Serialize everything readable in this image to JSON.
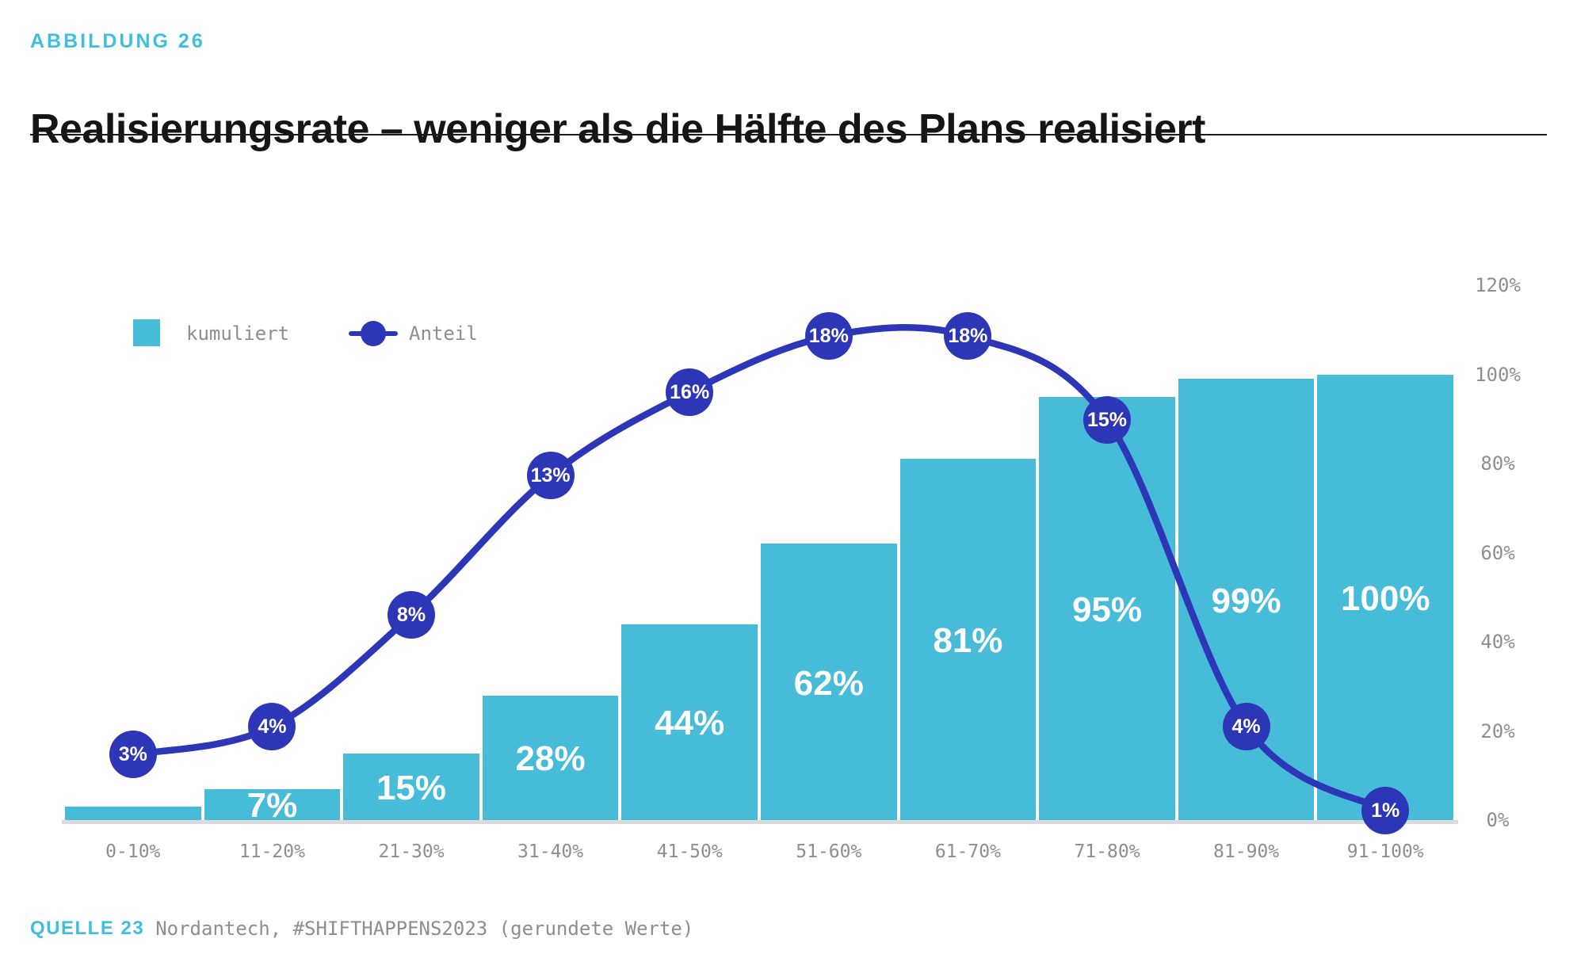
{
  "header": {
    "eyebrow": "ABBILDUNG 26",
    "title": "Realisierungsrate – weniger als die Hälfte des Plans realisiert"
  },
  "legend": {
    "bar_label": "kumuliert",
    "line_label": "Anteil"
  },
  "source": {
    "tag": "QUELLE 23",
    "text": "Nordantech, #SHIFTHAPPENS2023 (gerundete Werte)"
  },
  "colors": {
    "bar_cyan": "#47BCD9",
    "line_indigo": "#2D36B6",
    "accent_text_cyan": "#3FBFE0",
    "muted_gray": "#8E8E8E",
    "baseline_gray": "#D9DADB",
    "title_black": "#151515"
  },
  "chart_data": {
    "type": "bar",
    "subtype": "bar+line-combo",
    "categories": [
      "0-10%",
      "11-20%",
      "21-30%",
      "31-40%",
      "41-50%",
      "51-60%",
      "61-70%",
      "71-80%",
      "81-90%",
      "91-100%"
    ],
    "series": [
      {
        "name": "kumuliert",
        "type": "bar",
        "color": "#47BCD9",
        "values": [
          3,
          7,
          15,
          28,
          44,
          62,
          81,
          95,
          99,
          100
        ],
        "labels": [
          "",
          "7%",
          "15%",
          "28%",
          "44%",
          "62%",
          "81%",
          "95%",
          "99%",
          "100%"
        ]
      },
      {
        "name": "Anteil",
        "type": "line",
        "color": "#2D36B6",
        "values": [
          3,
          4,
          8,
          13,
          16,
          18,
          18,
          15,
          4,
          1
        ],
        "labels": [
          "3%",
          "4%",
          "8%",
          "13%",
          "16%",
          "18%",
          "18%",
          "15%",
          "4%",
          "1%"
        ]
      }
    ],
    "right_axis": {
      "tick_labels": [
        "0%",
        "20%",
        "40%",
        "60%",
        "80%",
        "100%",
        "120%"
      ],
      "tick_values": [
        0,
        20,
        40,
        60,
        80,
        100,
        120
      ],
      "min": 0,
      "max": 120,
      "position": "right"
    },
    "grid": false,
    "legend_position": "top-left"
  }
}
